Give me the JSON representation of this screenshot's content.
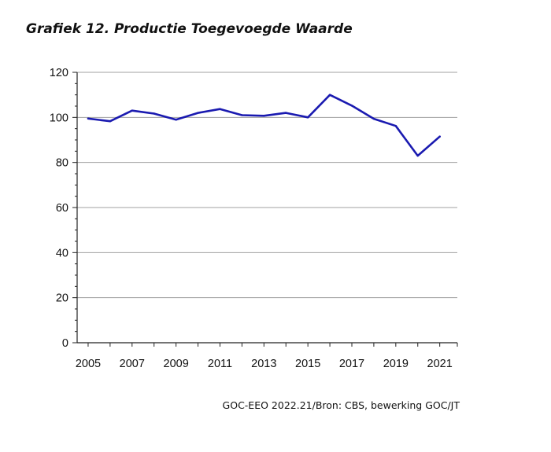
{
  "header": {
    "title": "Grafiek 12. Productie Toegevoegde Waarde"
  },
  "footer": {
    "source": "GOC-EEO 2022.21/Bron: CBS, bewerking GOC/JT"
  },
  "chart_data": {
    "type": "line",
    "title": "Grafiek 12. Productie Toegevoegde Waarde",
    "xlabel": "",
    "ylabel": "",
    "x": [
      2005,
      2006,
      2007,
      2008,
      2009,
      2010,
      2011,
      2012,
      2013,
      2014,
      2015,
      2016,
      2017,
      2018,
      2019,
      2020,
      2021
    ],
    "x_ticks": [
      2005,
      2007,
      2009,
      2011,
      2013,
      2015,
      2017,
      2019,
      2021
    ],
    "ylim": [
      0,
      120
    ],
    "y_ticks": [
      0,
      20,
      40,
      60,
      80,
      100,
      120
    ],
    "grid": "horizontal",
    "series": [
      {
        "color": "#1a1ab0",
        "values": [
          99.5,
          98.3,
          103.0,
          101.7,
          99.0,
          102.0,
          103.7,
          101.0,
          100.7,
          102.0,
          100.0,
          110.0,
          105.2,
          99.4,
          96.2,
          83.0,
          91.5
        ]
      }
    ]
  }
}
